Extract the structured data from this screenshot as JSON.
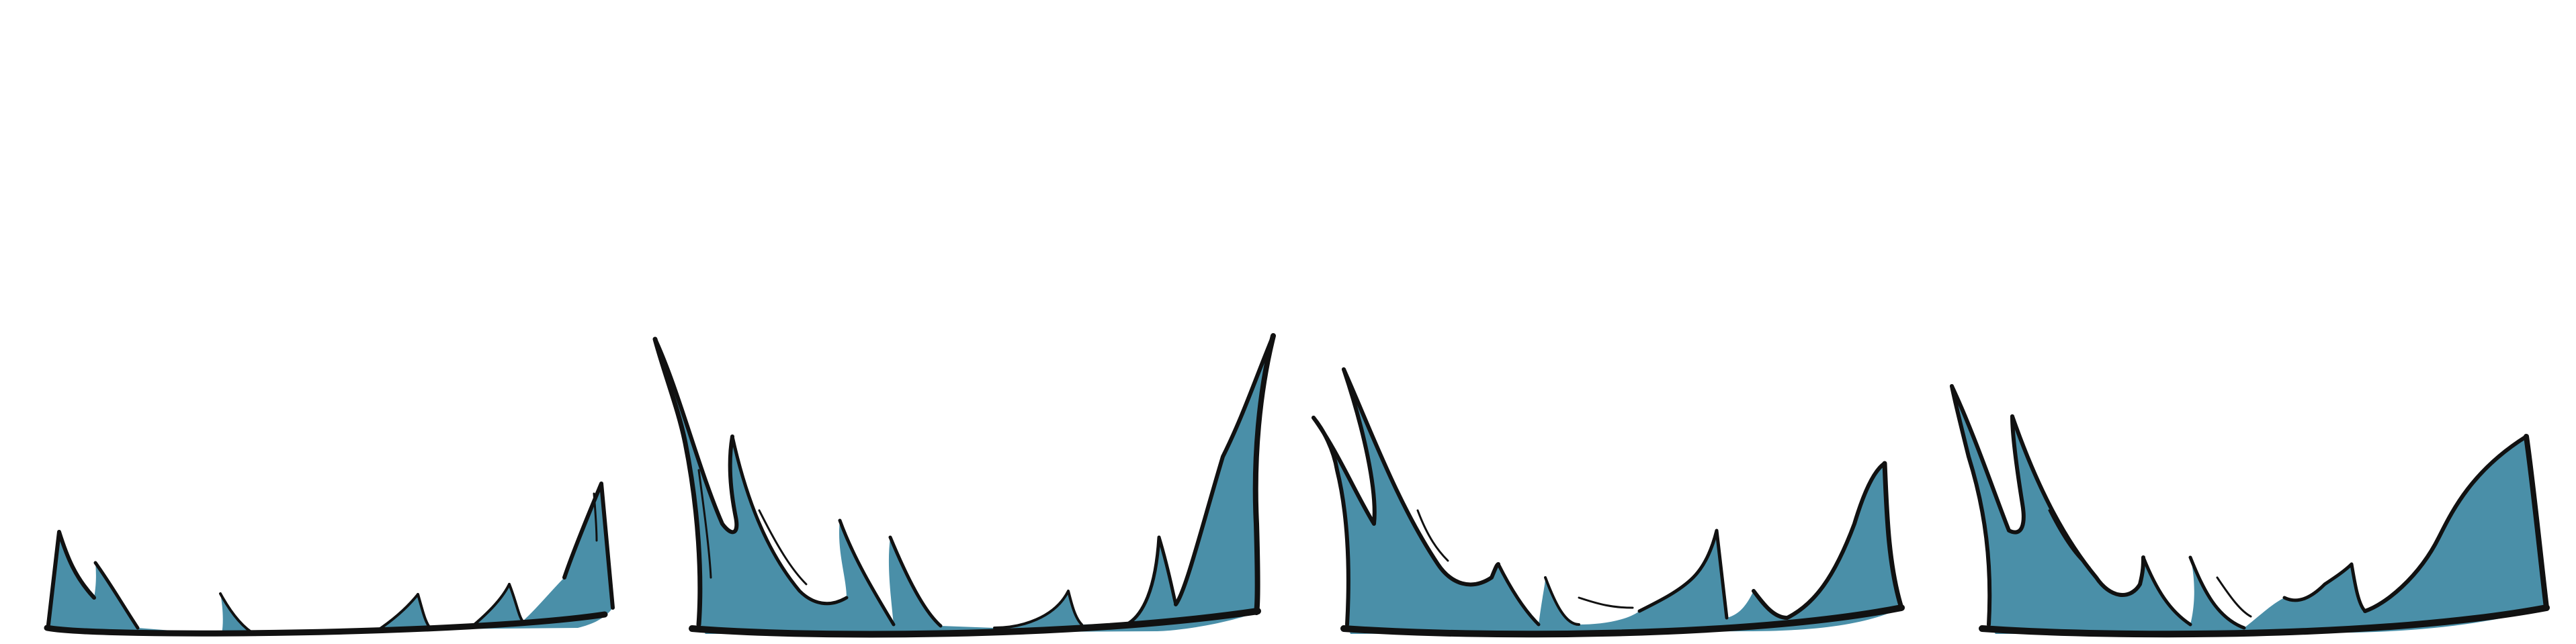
{
  "sheet": {
    "background": "#ffffff",
    "fill_color": "#4a8fa8",
    "highlight_color": "#6fb0c6",
    "ink_color": "#111111",
    "frame_count": 4
  },
  "frames": [
    {
      "name": "grass-frame-1",
      "icon": "grass-tuft-small"
    },
    {
      "name": "grass-frame-2",
      "icon": "grass-tuft-tall"
    },
    {
      "name": "grass-frame-3",
      "icon": "grass-tuft-medium"
    },
    {
      "name": "grass-frame-4",
      "icon": "grass-tuft-medium-wide"
    }
  ]
}
